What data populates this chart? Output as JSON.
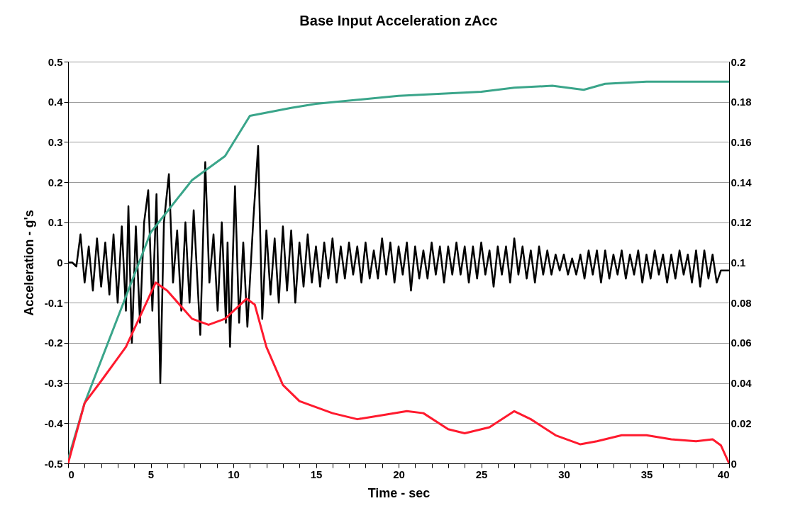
{
  "chart_data": {
    "type": "line",
    "title": "Base Input Acceleration zAcc",
    "xlabel": "Time - sec",
    "ylabel": "Acceleration - g's",
    "xlim": [
      0,
      40
    ],
    "xticks": [
      0,
      {
        "value": 1,
        "label": null
      },
      {
        "value": 2,
        "label": null
      },
      {
        "value": 3,
        "label": null
      },
      {
        "value": 4,
        "label": null
      },
      5,
      {
        "value": 6,
        "label": null
      },
      {
        "value": 7,
        "label": null
      },
      {
        "value": 8,
        "label": null
      },
      {
        "value": 9,
        "label": null
      },
      10,
      {
        "value": 11,
        "label": null
      },
      {
        "value": 12,
        "label": null
      },
      {
        "value": 13,
        "label": null
      },
      {
        "value": 14,
        "label": null
      },
      15,
      {
        "value": 16,
        "label": null
      },
      {
        "value": 17,
        "label": null
      },
      {
        "value": 18,
        "label": null
      },
      {
        "value": 19,
        "label": null
      },
      20,
      {
        "value": 21,
        "label": null
      },
      {
        "value": 22,
        "label": null
      },
      {
        "value": 23,
        "label": null
      },
      {
        "value": 24,
        "label": null
      },
      25,
      {
        "value": 26,
        "label": null
      },
      {
        "value": 27,
        "label": null
      },
      {
        "value": 28,
        "label": null
      },
      {
        "value": 29,
        "label": null
      },
      30,
      {
        "value": 31,
        "label": null
      },
      {
        "value": 32,
        "label": null
      },
      {
        "value": 33,
        "label": null
      },
      {
        "value": 34,
        "label": null
      },
      35,
      {
        "value": 36,
        "label": null
      },
      {
        "value": 37,
        "label": null
      },
      {
        "value": 38,
        "label": null
      },
      {
        "value": 39,
        "label": null
      },
      40
    ],
    "ylim": [
      -0.5,
      0.5
    ],
    "yticks": [
      -0.5,
      -0.4,
      -0.3,
      -0.2,
      -0.1,
      0,
      0.1,
      0.2,
      0.3,
      0.4,
      0.5
    ],
    "y2lim": [
      0,
      0.2
    ],
    "y2ticks": [
      0,
      0.02,
      0.04,
      0.06,
      0.08,
      0.1,
      0.12,
      0.14,
      0.16,
      0.18,
      0.2
    ],
    "grid": "y",
    "series": [
      {
        "color": "#000000",
        "x": [
          0,
          0.25,
          0.5,
          0.75,
          1,
          1.25,
          1.5,
          1.75,
          2,
          2.25,
          2.5,
          2.75,
          3,
          3.25,
          3.5,
          3.65,
          3.86,
          4.1,
          4.35,
          4.6,
          4.85,
          5.1,
          5.35,
          5.58,
          5.8,
          6.1,
          6.35,
          6.6,
          6.85,
          7.1,
          7.35,
          7.6,
          8,
          8.3,
          8.55,
          8.8,
          9.05,
          9.3,
          9.55,
          9.65,
          9.8,
          10.1,
          10.35,
          10.6,
          10.85,
          11.2,
          11.5,
          11.75,
          12,
          12.25,
          12.5,
          12.75,
          13,
          13.25,
          13.5,
          13.75,
          14,
          14.25,
          14.5,
          14.75,
          15,
          15.25,
          15.5,
          15.75,
          16,
          16.25,
          16.5,
          16.75,
          17,
          17.25,
          17.5,
          17.75,
          18,
          18.25,
          18.5,
          18.75,
          19,
          19.25,
          19.5,
          19.75,
          20,
          20.25,
          20.5,
          20.75,
          21,
          21.25,
          21.5,
          21.75,
          22,
          22.25,
          22.5,
          22.75,
          23,
          23.25,
          23.5,
          23.75,
          24,
          24.25,
          24.5,
          24.75,
          25,
          25.25,
          25.5,
          25.75,
          26,
          26.25,
          26.5,
          26.75,
          27,
          27.25,
          27.5,
          27.75,
          28,
          28.25,
          28.5,
          28.75,
          29,
          29.25,
          29.5,
          29.75,
          30,
          30.25,
          30.5,
          30.75,
          31,
          31.25,
          31.5,
          31.75,
          32,
          32.25,
          32.5,
          32.75,
          33,
          33.25,
          33.5,
          33.75,
          34,
          34.25,
          34.5,
          34.75,
          35,
          35.25,
          35.5,
          35.75,
          36,
          36.25,
          36.5,
          36.75,
          37,
          37.25,
          37.5,
          37.75,
          38,
          38.25,
          38.5,
          38.75,
          39,
          39.25,
          39.5,
          40
        ],
        "values": [
          0,
          0,
          -0.01,
          0.07,
          -0.05,
          0.04,
          -0.07,
          0.06,
          -0.06,
          0.05,
          -0.08,
          0.07,
          -0.1,
          0.09,
          -0.12,
          0.14,
          -0.2,
          0.09,
          -0.15,
          0.1,
          0.18,
          -0.12,
          0.17,
          -0.3,
          0.1,
          0.22,
          -0.05,
          0.08,
          -0.12,
          0.1,
          -0.1,
          0.13,
          -0.18,
          0.25,
          -0.05,
          0.07,
          -0.12,
          0.1,
          -0.15,
          0.05,
          -0.21,
          0.19,
          -0.15,
          0.05,
          -0.16,
          0.1,
          0.29,
          -0.14,
          0.08,
          -0.08,
          0.06,
          -0.1,
          0.09,
          -0.07,
          0.08,
          -0.1,
          0.05,
          -0.06,
          0.07,
          -0.05,
          0.04,
          -0.06,
          0.05,
          -0.04,
          0.06,
          -0.05,
          0.04,
          -0.04,
          0.05,
          -0.03,
          0.04,
          -0.05,
          0.05,
          -0.04,
          0.03,
          -0.04,
          0.06,
          -0.03,
          0.05,
          -0.05,
          0.04,
          -0.03,
          0.05,
          -0.07,
          0.04,
          -0.04,
          0.03,
          -0.04,
          0.05,
          -0.03,
          0.04,
          -0.05,
          0.04,
          -0.03,
          0.05,
          -0.03,
          0.04,
          -0.05,
          0.04,
          -0.04,
          0.05,
          -0.03,
          0.03,
          -0.06,
          0.04,
          -0.03,
          0.04,
          -0.05,
          0.06,
          -0.03,
          0.04,
          -0.04,
          0.03,
          -0.05,
          0.04,
          -0.03,
          0.03,
          -0.03,
          0.02,
          -0.02,
          0.02,
          -0.03,
          0.01,
          -0.03,
          0.02,
          -0.04,
          0.03,
          -0.03,
          0.03,
          -0.05,
          0.03,
          -0.04,
          0.02,
          -0.03,
          0.03,
          -0.04,
          0.02,
          -0.03,
          0.03,
          -0.05,
          0.02,
          -0.04,
          0.03,
          -0.03,
          0.02,
          -0.05,
          0.02,
          -0.04,
          0.03,
          -0.03,
          0.02,
          -0.05,
          0.03,
          -0.06,
          0.03,
          -0.04,
          0.02,
          -0.05,
          -0.02,
          -0.02
        ]
      },
      {
        "color": "#3aa58a",
        "axis": "y2",
        "x": [
          0,
          1,
          5,
          7.5,
          9.5,
          11,
          13.5,
          15,
          20,
          25,
          27,
          29.3,
          31.2,
          32.5,
          35,
          40
        ],
        "values": [
          0.002,
          0.03,
          0.115,
          0.141,
          0.153,
          0.173,
          0.177,
          0.179,
          0.183,
          0.185,
          0.187,
          0.188,
          0.186,
          0.189,
          0.19,
          0.19
        ]
      },
      {
        "color": "#ff1a2e",
        "axis": "y2",
        "x": [
          0,
          1,
          2,
          3.5,
          5.3,
          6,
          7.5,
          8.5,
          9.5,
          10.8,
          11.3,
          12,
          13,
          14,
          16,
          17.5,
          19,
          20.5,
          21.5,
          23,
          24,
          25.5,
          27,
          28,
          29.5,
          31,
          32,
          33.5,
          35,
          36.5,
          38,
          39,
          39.5,
          40
        ],
        "values": [
          0,
          0.03,
          0.041,
          0.058,
          0.09,
          0.086,
          0.072,
          0.069,
          0.072,
          0.082,
          0.079,
          0.058,
          0.039,
          0.031,
          0.025,
          0.022,
          0.024,
          0.026,
          0.025,
          0.017,
          0.015,
          0.018,
          0.026,
          0.022,
          0.014,
          0.0095,
          0.011,
          0.014,
          0.014,
          0.012,
          0.011,
          0.012,
          0.009,
          0
        ]
      }
    ]
  }
}
